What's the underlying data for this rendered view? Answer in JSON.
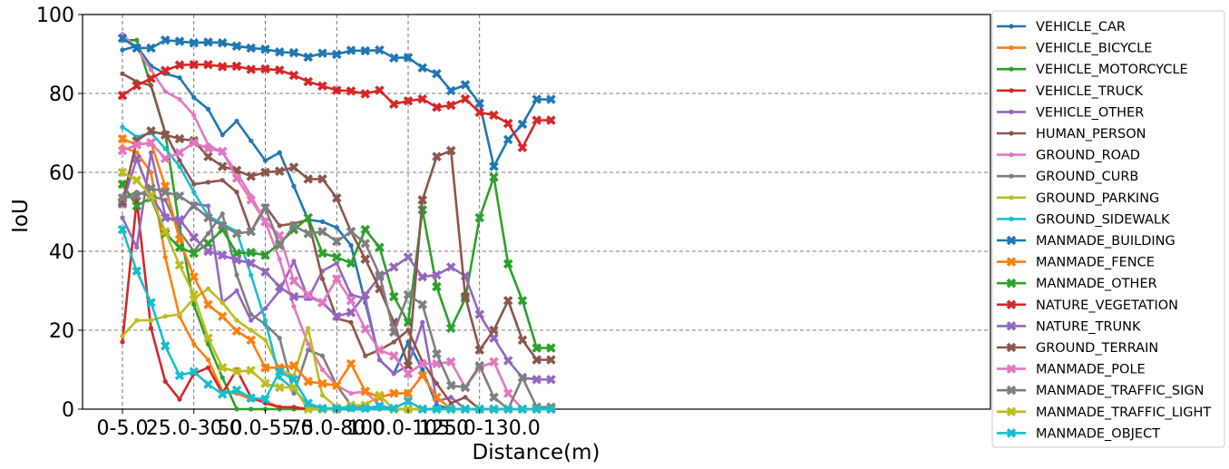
{
  "chart_data": {
    "type": "line",
    "xlabel": "Distance(m)",
    "ylabel": "IoU",
    "ylim": [
      0,
      100
    ],
    "yticks": [
      "0",
      "20",
      "40",
      "60",
      "80",
      "100"
    ],
    "xtick_labels": [
      "0-5.0",
      "25.0-30.0",
      "50.0-55.0",
      "75.0-80.0",
      "100.0-105.0",
      "125.0-130.0"
    ],
    "grid": true,
    "legend_position": "right",
    "series": [
      {
        "name": "VEHICLE_CAR",
        "color": "#1f77b4",
        "marker": "dot",
        "values": [
          91,
          92,
          87,
          85,
          84,
          79,
          76,
          69.5,
          73,
          68,
          63,
          65,
          56.5,
          48,
          47.5,
          46,
          41.5,
          27,
          12.5,
          9,
          17,
          10,
          1,
          0,
          0,
          0,
          0,
          0,
          0,
          0,
          0
        ]
      },
      {
        "name": "VEHICLE_BICYCLE",
        "color": "#ff7f0e",
        "marker": "dot",
        "values": [
          66.5,
          65,
          60,
          38.5,
          23.5,
          16.5,
          12.5,
          4.5,
          4,
          2.5,
          2,
          0.5,
          0.5,
          0,
          0,
          0,
          0,
          0,
          0,
          0,
          0,
          0,
          0,
          0,
          0,
          0,
          0,
          0,
          0,
          0,
          0
        ]
      },
      {
        "name": "VEHICLE_MOTORCYCLE",
        "color": "#2ca02c",
        "marker": "dot",
        "values": [
          93.5,
          93.5,
          82,
          70,
          46,
          26.5,
          16.5,
          8,
          0,
          0,
          0,
          0,
          0,
          0,
          0,
          0,
          0,
          0,
          0,
          0,
          0,
          0,
          0,
          0,
          0,
          0,
          0,
          0,
          0,
          0,
          0
        ]
      },
      {
        "name": "VEHICLE_TRUCK",
        "color": "#d62728",
        "marker": "dot",
        "values": [
          17,
          53,
          20.5,
          7,
          2.5,
          9,
          10.5,
          4,
          10,
          3,
          1.5,
          0.5,
          0.5,
          0,
          0,
          0,
          0,
          0,
          0,
          0,
          0,
          0,
          0,
          0,
          0,
          0,
          0,
          0,
          0,
          0,
          0
        ]
      },
      {
        "name": "VEHICLE_OTHER",
        "color": "#9467bd",
        "marker": "dot",
        "values": [
          48.5,
          41,
          65,
          49,
          47,
          52,
          51.5,
          27,
          30,
          22.5,
          25.5,
          30,
          37.5,
          28,
          35,
          37,
          29,
          28,
          12.5,
          9,
          11,
          22,
          2,
          3,
          0,
          0,
          0,
          0,
          0,
          0,
          0
        ]
      },
      {
        "name": "HUMAN_PERSON",
        "color": "#8c564b",
        "marker": "dot",
        "values": [
          85,
          83,
          82,
          70,
          63,
          57,
          57.5,
          58,
          55,
          45,
          51.5,
          46.5,
          47,
          48,
          33,
          23,
          22,
          13.5,
          15,
          17,
          20,
          12,
          6.5,
          1.5,
          3,
          0,
          0,
          0,
          0,
          0,
          0
        ]
      },
      {
        "name": "GROUND_ROAD",
        "color": "#e377c2",
        "marker": "dot",
        "values": [
          95,
          91.5,
          86,
          80.5,
          78.5,
          74.5,
          67,
          65,
          60,
          54,
          47.5,
          38,
          26,
          16.5,
          10,
          6,
          4,
          4.5,
          1,
          0,
          0,
          0,
          0,
          0,
          0,
          0,
          0,
          0,
          0,
          0,
          0
        ]
      },
      {
        "name": "GROUND_CURB",
        "color": "#7f7f7f",
        "marker": "dot",
        "values": [
          53.5,
          55,
          54,
          53,
          45,
          40,
          44.5,
          49.5,
          34,
          24,
          21.5,
          18,
          4,
          15,
          13.5,
          6,
          1,
          0.5,
          0,
          0,
          0,
          0,
          0,
          0,
          0,
          0,
          0,
          0,
          0,
          0,
          0
        ]
      },
      {
        "name": "GROUND_PARKING",
        "color": "#bcbd22",
        "marker": "dot",
        "values": [
          18.5,
          22.5,
          22.5,
          23.5,
          24,
          28,
          30.5,
          27,
          22.5,
          20,
          17.5,
          10,
          8.5,
          20.5,
          3.5,
          0.5,
          0,
          0,
          0,
          0,
          0,
          0,
          0,
          0,
          0,
          0,
          0,
          0,
          0,
          0,
          0
        ]
      },
      {
        "name": "GROUND_SIDEWALK",
        "color": "#17becf",
        "marker": "dot",
        "values": [
          71.5,
          69,
          70,
          66,
          61.5,
          55,
          49,
          47,
          45,
          34,
          22.5,
          8,
          5,
          1,
          0,
          0,
          0,
          0,
          0,
          0,
          0,
          0,
          0,
          0,
          0,
          0,
          0,
          0,
          0,
          0,
          0
        ]
      },
      {
        "name": "MANMADE_BUILDING",
        "color": "#1f77b4",
        "marker": "x",
        "values": [
          94,
          91.5,
          91.5,
          93.5,
          93.2,
          92.8,
          93,
          92.8,
          92,
          91.5,
          91.2,
          90.5,
          90.3,
          89.2,
          90.2,
          89.9,
          90.9,
          90.8,
          91,
          89,
          89.1,
          86.5,
          85,
          80.7,
          82.2,
          77.5,
          61.5,
          68.3,
          72.2,
          78.5,
          78.5
        ]
      },
      {
        "name": "MANMADE_FENCE",
        "color": "#ff7f0e",
        "marker": "x",
        "values": [
          68.5,
          67,
          67.5,
          56.5,
          43,
          33.5,
          26.5,
          23.5,
          19.8,
          17.5,
          10.5,
          10.5,
          11,
          7,
          6.5,
          6,
          11.5,
          4.5,
          3,
          4,
          4,
          8.5,
          3,
          0,
          0,
          0,
          0,
          0,
          0,
          0,
          0
        ]
      },
      {
        "name": "MANMADE_OTHER",
        "color": "#2ca02c",
        "marker": "x",
        "values": [
          57,
          51.5,
          53.5,
          44.5,
          41,
          39.5,
          42,
          45.5,
          39.5,
          39.7,
          39,
          42,
          45.5,
          48.5,
          39.5,
          38.5,
          37,
          45.5,
          41,
          28.5,
          22,
          50.5,
          31,
          20.5,
          28,
          48.5,
          58.8,
          36.8,
          27.5,
          15.5,
          15.5
        ]
      },
      {
        "name": "NATURE_VEGETATION",
        "color": "#d62728",
        "marker": "x",
        "values": [
          79.5,
          82,
          83.8,
          85.8,
          87.2,
          87.3,
          87.3,
          86.8,
          86.9,
          86.1,
          86.2,
          85.9,
          84.6,
          83,
          81.9,
          80.8,
          80.6,
          79.9,
          80.8,
          77.3,
          78.1,
          78.6,
          76.5,
          77,
          78.6,
          75.2,
          74.5,
          72.4,
          66.3,
          73.2,
          73.2
        ]
      },
      {
        "name": "NATURE_TRUNK",
        "color": "#9467bd",
        "marker": "x",
        "values": [
          52,
          63.5,
          54,
          48.5,
          48,
          43.5,
          40,
          39,
          37.8,
          37,
          34.8,
          31,
          28.5,
          28.5,
          27,
          23.5,
          24.5,
          29,
          33.5,
          36,
          38.5,
          33.5,
          34,
          36,
          33.7,
          24,
          18,
          12.3,
          8,
          7.5,
          7.5
        ]
      },
      {
        "name": "GROUND_TERRAIN",
        "color": "#8c564b",
        "marker": "x",
        "values": [
          52.5,
          68,
          70.5,
          69.5,
          68.5,
          68,
          64,
          61.5,
          60.5,
          59,
          60,
          60.3,
          61.3,
          58.3,
          58.3,
          53.5,
          45,
          38,
          30.5,
          22,
          11,
          53,
          64,
          65.5,
          28.5,
          15,
          20,
          27.5,
          17.5,
          12.5,
          12.5
        ]
      },
      {
        "name": "MANMADE_POLE",
        "color": "#e377c2",
        "marker": "x",
        "values": [
          65.5,
          67,
          67.5,
          63.5,
          65,
          67.5,
          66,
          65.3,
          58.5,
          53,
          47.5,
          44,
          32.5,
          29,
          27,
          33,
          27.5,
          20.3,
          15,
          13.5,
          9,
          11.5,
          11.5,
          12,
          5.5,
          10.5,
          12,
          4,
          0,
          0,
          0
        ]
      },
      {
        "name": "MANMADE_TRAFFIC_SIGN",
        "color": "#7f7f7f",
        "marker": "x",
        "values": [
          53.5,
          54,
          56,
          55,
          54,
          51.5,
          48.5,
          46.5,
          44.5,
          45,
          51,
          41.5,
          46.5,
          44.5,
          45,
          42.5,
          45,
          42,
          34,
          19.5,
          29,
          26.5,
          14,
          6,
          5.5,
          11,
          3,
          0,
          8,
          0.5,
          0.5
        ]
      },
      {
        "name": "MANMADE_TRAFFIC_LIGHT",
        "color": "#bcbd22",
        "marker": "x",
        "values": [
          60,
          58,
          54,
          45,
          36.5,
          29,
          18,
          10.5,
          9.5,
          9.8,
          6.5,
          5.5,
          5.5,
          0,
          0,
          0,
          1,
          1,
          3.5,
          0,
          0,
          0,
          0,
          0,
          0,
          0,
          0,
          0,
          0,
          0,
          0
        ]
      },
      {
        "name": "MANMADE_OBJECT",
        "color": "#17becf",
        "marker": "x",
        "values": [
          45.5,
          35,
          27,
          16,
          8.5,
          9.5,
          6.3,
          3.8,
          4.8,
          2.8,
          2.5,
          9.5,
          7.5,
          1.5,
          0.2,
          0.2,
          0.3,
          0.2,
          0.8,
          0.2,
          2,
          0,
          0,
          0,
          0,
          0,
          0,
          0,
          0,
          0,
          0
        ]
      }
    ]
  }
}
